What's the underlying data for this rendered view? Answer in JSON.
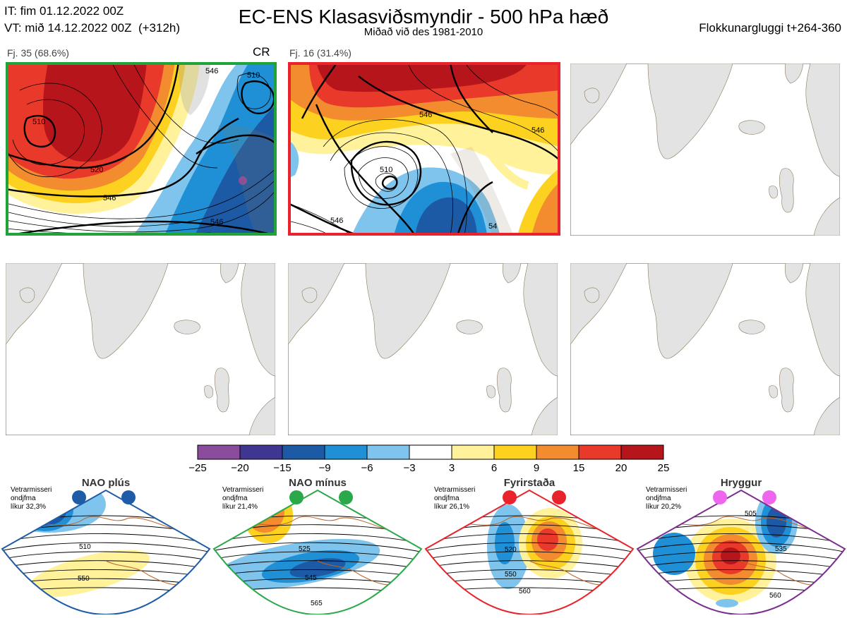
{
  "header": {
    "it_line": "IT: fim 01.12.2022 00Z",
    "vt_line": "VT: mið 14.12.2022 00Z  (+312h)",
    "title": "EC-ENS Klasasviðsmyndir - 500 hPa hæð",
    "subtitle": "Miðað við des 1981-2010",
    "window": "Flokkunargluggi t+264-360"
  },
  "panels": [
    {
      "label": "Fj. 35 (68.6%)",
      "tag": "CR",
      "border_color": "#1fa33a",
      "contours": [
        "510",
        "510",
        "520",
        "546",
        "546",
        "546"
      ]
    },
    {
      "label": "Fj. 16 (31.4%)",
      "border_color": "#e8232b",
      "contours": [
        "510",
        "546",
        "546",
        "546",
        "54"
      ]
    }
  ],
  "colorbar": {
    "ticks": [
      "−25",
      "−20",
      "−15",
      "−9",
      "−6",
      "−3",
      "3",
      "6",
      "9",
      "15",
      "20",
      "25"
    ],
    "colors": [
      "#8b4c9e",
      "#3f3691",
      "#1d5aa6",
      "#1f8fd6",
      "#7fc4ec",
      "#ffffff",
      "#fff29a",
      "#fdd11f",
      "#f28c2e",
      "#e8392b",
      "#b5151b"
    ]
  },
  "regimes": [
    {
      "name": "NAO plús",
      "text": "Vetrarmisseri\nondjfma\nlíkur 32,3%",
      "color": "#1f5ca8",
      "contours": [
        "510",
        "550"
      ]
    },
    {
      "name": "NAO mínus",
      "text": "Vetrarmisseri\nondjfma\nlíkur 21,4%",
      "color": "#2aa84a",
      "contours": [
        "525",
        "545",
        "565"
      ]
    },
    {
      "name": "Fyrirstaða",
      "text": "Vetrarmisseri\nondjfma\nlíkur 26,1%",
      "color": "#e8232b",
      "contours": [
        "520",
        "550",
        "560"
      ]
    },
    {
      "name": "Hryggur",
      "text": "Vetrarmisseri\nondjfma\nlíkur 20,2%",
      "color": "#7a2f8e",
      "contours": [
        "505",
        "535",
        "560"
      ]
    }
  ]
}
